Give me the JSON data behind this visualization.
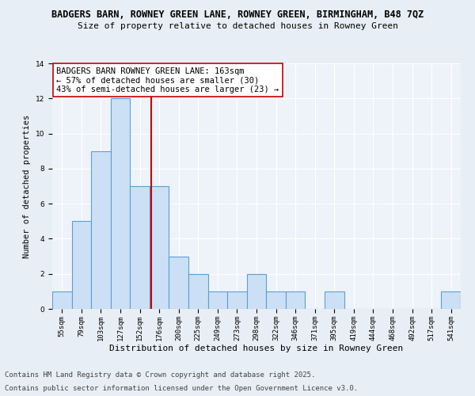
{
  "title1": "BADGERS BARN, ROWNEY GREEN LANE, ROWNEY GREEN, BIRMINGHAM, B48 7QZ",
  "title2": "Size of property relative to detached houses in Rowney Green",
  "xlabel": "Distribution of detached houses by size in Rowney Green",
  "ylabel": "Number of detached properties",
  "categories": [
    "55sqm",
    "79sqm",
    "103sqm",
    "127sqm",
    "152sqm",
    "176sqm",
    "200sqm",
    "225sqm",
    "249sqm",
    "273sqm",
    "298sqm",
    "322sqm",
    "346sqm",
    "371sqm",
    "395sqm",
    "419sqm",
    "444sqm",
    "468sqm",
    "492sqm",
    "517sqm",
    "541sqm"
  ],
  "values": [
    1,
    5,
    9,
    12,
    7,
    7,
    3,
    2,
    1,
    1,
    2,
    1,
    1,
    0,
    1,
    0,
    0,
    0,
    0,
    0,
    1
  ],
  "bar_color": "#cce0f5",
  "bar_edge_color": "#5a9fd4",
  "vline_x": 4.57,
  "vline_color": "#cc0000",
  "annotation_text": "BADGERS BARN ROWNEY GREEN LANE: 163sqm\n← 57% of detached houses are smaller (30)\n43% of semi-detached houses are larger (23) →",
  "annotation_box_color": "#ffffff",
  "annotation_box_edge_color": "#cc0000",
  "ylim": [
    0,
    14
  ],
  "yticks": [
    0,
    2,
    4,
    6,
    8,
    10,
    12,
    14
  ],
  "background_color": "#e8eef5",
  "plot_background_color": "#eef3fa",
  "footer1": "Contains HM Land Registry data © Crown copyright and database right 2025.",
  "footer2": "Contains public sector information licensed under the Open Government Licence v3.0.",
  "title1_fontsize": 8.5,
  "title2_fontsize": 8.0,
  "xlabel_fontsize": 8.0,
  "ylabel_fontsize": 7.5,
  "tick_fontsize": 6.5,
  "annotation_fontsize": 7.5,
  "footer_fontsize": 6.5
}
